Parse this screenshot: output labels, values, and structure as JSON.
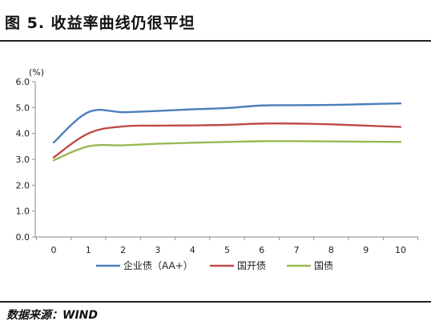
{
  "header": {
    "title": "图 5.  收益率曲线仍很平坦"
  },
  "footer": {
    "source": "数据来源：WIND"
  },
  "chart_data": {
    "type": "line",
    "unit_label": "(%)",
    "x": [
      0,
      1,
      2,
      3,
      4,
      5,
      6,
      7,
      8,
      9,
      10
    ],
    "ylim": [
      0.0,
      6.0
    ],
    "yticks": [
      "0.0",
      "1.0",
      "2.0",
      "3.0",
      "4.0",
      "5.0",
      "6.0"
    ],
    "grid": false,
    "legend_position": "bottom",
    "series": [
      {
        "name": "企业债（AA+）",
        "color": "#4a7ebb",
        "values": [
          3.65,
          4.82,
          4.82,
          4.87,
          4.93,
          4.98,
          5.08,
          5.09,
          5.1,
          5.13,
          5.16
        ]
      },
      {
        "name": "国开债",
        "color": "#be4b48",
        "values": [
          3.07,
          4.0,
          4.27,
          4.3,
          4.31,
          4.33,
          4.38,
          4.38,
          4.35,
          4.3,
          4.25
        ]
      },
      {
        "name": "国债",
        "color": "#98b954",
        "values": [
          2.96,
          3.5,
          3.54,
          3.6,
          3.64,
          3.67,
          3.7,
          3.7,
          3.69,
          3.68,
          3.67
        ]
      }
    ]
  }
}
